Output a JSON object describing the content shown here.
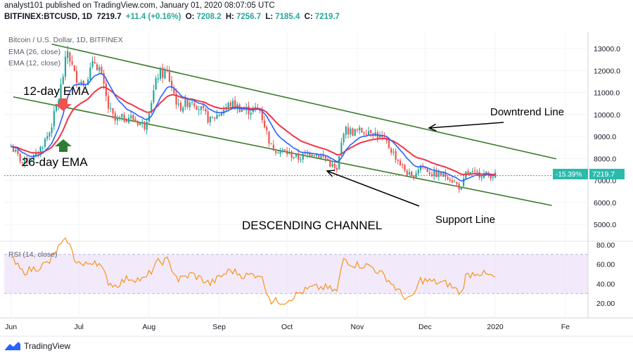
{
  "header": {
    "published": "analyst101 published on TradingView.com, January 01, 2020 08:07:05 UTC",
    "symbol": "BITFINEX:BTCUSD, 1D",
    "last": "7219.7",
    "change": "+11.4 (+0.16%)",
    "o_label": "O:",
    "o": "7208.2",
    "h_label": "H:",
    "h": "7256.7",
    "l_label": "L:",
    "l": "7185.4",
    "c_label": "C:",
    "c": "7219.7"
  },
  "legend": {
    "title": "Bitcoin / U.S. Dollar, 1D, BITFINEX",
    "ema26": "EMA (26, close)",
    "ema12": "EMA (12, close)"
  },
  "rsi": {
    "label": "RSI (14, close)"
  },
  "annotations": {
    "ema12": "12-day EMA",
    "ema26": "26-day EMA",
    "downtrend": "Downtrend Line",
    "support": "Support Line",
    "channel": "DESCENDING CHANNEL"
  },
  "price_tag": {
    "change": "-15.39%",
    "price": "7219.7"
  },
  "footer": {
    "brand": "TradingView"
  },
  "colors": {
    "up": "#26a69a",
    "down": "#ef5350",
    "ema12": "#2962ff",
    "ema26": "#f23645",
    "trend": "#3d7a2a",
    "rsi": "#f7931a",
    "rsi_band": "#e8d8f8"
  },
  "chart_data": {
    "type": "candlestick",
    "price_axis": {
      "ticks": [
        5000,
        6000,
        7000,
        8000,
        9000,
        10000,
        11000,
        12000,
        13000
      ],
      "labels": [
        "5000.0",
        "6000.0",
        "7000.0",
        "8000.0",
        "9000.0",
        "10000.0",
        "11000.0",
        "12000.0",
        "13000.0"
      ]
    },
    "time_axis": {
      "labels": [
        "Jun",
        "Jul",
        "Aug",
        "Sep",
        "Oct",
        "Nov",
        "Dec",
        "2020",
        "Fe"
      ]
    },
    "rsi_axis": {
      "ticks": [
        20,
        40,
        60,
        80
      ],
      "labels": [
        "20.00",
        "40.00",
        "60.00",
        "80.00"
      ],
      "band": [
        30,
        70
      ]
    },
    "close_series": [
      [
        "2019-06-01",
        8550
      ],
      [
        "2019-06-06",
        7800
      ],
      [
        "2019-06-12",
        8100
      ],
      [
        "2019-06-18",
        9200
      ],
      [
        "2019-06-22",
        10700
      ],
      [
        "2019-06-26",
        12900
      ],
      [
        "2019-06-29",
        11800
      ],
      [
        "2019-07-03",
        11400
      ],
      [
        "2019-07-08",
        12400
      ],
      [
        "2019-07-10",
        12100
      ],
      [
        "2019-07-14",
        10300
      ],
      [
        "2019-07-17",
        9700
      ],
      [
        "2019-07-23",
        9900
      ],
      [
        "2019-07-30",
        9500
      ],
      [
        "2019-08-05",
        11800
      ],
      [
        "2019-08-09",
        11900
      ],
      [
        "2019-08-14",
        10300
      ],
      [
        "2019-08-20",
        10700
      ],
      [
        "2019-08-28",
        9700
      ],
      [
        "2019-09-06",
        10500
      ],
      [
        "2019-09-12",
        10200
      ],
      [
        "2019-09-19",
        10200
      ],
      [
        "2019-09-24",
        8500
      ],
      [
        "2019-09-30",
        8300
      ],
      [
        "2019-10-06",
        8000
      ],
      [
        "2019-10-12",
        8300
      ],
      [
        "2019-10-18",
        8000
      ],
      [
        "2019-10-23",
        7400
      ],
      [
        "2019-10-26",
        9300
      ],
      [
        "2019-10-30",
        9200
      ],
      [
        "2019-11-07",
        9300
      ],
      [
        "2019-11-14",
        8700
      ],
      [
        "2019-11-21",
        7600
      ],
      [
        "2019-11-25",
        7100
      ],
      [
        "2019-11-29",
        7700
      ],
      [
        "2019-12-04",
        7300
      ],
      [
        "2019-12-11",
        7200
      ],
      [
        "2019-12-17",
        6600
      ],
      [
        "2019-12-19",
        7300
      ],
      [
        "2019-12-24",
        7300
      ],
      [
        "2020-01-01",
        7220
      ]
    ],
    "rsi_series": [
      [
        "2019-06-01",
        66
      ],
      [
        "2019-06-06",
        52
      ],
      [
        "2019-06-12",
        56
      ],
      [
        "2019-06-18",
        62
      ],
      [
        "2019-06-22",
        77
      ],
      [
        "2019-06-26",
        85
      ],
      [
        "2019-06-29",
        66
      ],
      [
        "2019-07-03",
        58
      ],
      [
        "2019-07-08",
        64
      ],
      [
        "2019-07-10",
        60
      ],
      [
        "2019-07-14",
        42
      ],
      [
        "2019-07-17",
        38
      ],
      [
        "2019-07-23",
        46
      ],
      [
        "2019-07-30",
        44
      ],
      [
        "2019-08-05",
        62
      ],
      [
        "2019-08-09",
        64
      ],
      [
        "2019-08-14",
        44
      ],
      [
        "2019-08-20",
        50
      ],
      [
        "2019-08-28",
        40
      ],
      [
        "2019-09-06",
        54
      ],
      [
        "2019-09-12",
        48
      ],
      [
        "2019-09-19",
        50
      ],
      [
        "2019-09-24",
        22
      ],
      [
        "2019-09-30",
        22
      ],
      [
        "2019-10-06",
        30
      ],
      [
        "2019-10-12",
        36
      ],
      [
        "2019-10-18",
        36
      ],
      [
        "2019-10-23",
        32
      ],
      [
        "2019-10-26",
        66
      ],
      [
        "2019-10-30",
        60
      ],
      [
        "2019-11-07",
        58
      ],
      [
        "2019-11-14",
        46
      ],
      [
        "2019-11-21",
        28
      ],
      [
        "2019-11-25",
        24
      ],
      [
        "2019-11-29",
        44
      ],
      [
        "2019-12-04",
        42
      ],
      [
        "2019-12-11",
        40
      ],
      [
        "2019-12-17",
        30
      ],
      [
        "2019-12-19",
        48
      ],
      [
        "2019-12-24",
        52
      ],
      [
        "2020-01-01",
        46
      ]
    ]
  }
}
